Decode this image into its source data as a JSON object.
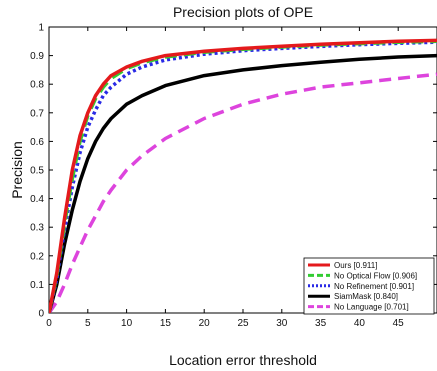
{
  "chart_data": {
    "type": "line",
    "title": "Precision plots of OPE",
    "xlabel": "Location error threshold",
    "ylabel": "Precision",
    "xlim": [
      0,
      50
    ],
    "ylim": [
      0,
      1
    ],
    "xticks": [
      0,
      5,
      10,
      15,
      20,
      25,
      30,
      35,
      40,
      45
    ],
    "yticks": [
      0,
      0.1,
      0.2,
      0.3,
      0.4,
      0.5,
      0.6,
      0.7,
      0.8,
      0.9,
      1
    ],
    "grid": false,
    "legend_position": "bottom-right",
    "x": [
      0,
      1,
      2,
      3,
      4,
      5,
      6,
      7,
      8,
      10,
      12,
      15,
      20,
      25,
      30,
      35,
      40,
      45,
      50
    ],
    "series": [
      {
        "name": "Ours [0.911]",
        "color": "#e41a1c",
        "style": "solid",
        "values": [
          0.0,
          0.14,
          0.33,
          0.5,
          0.62,
          0.7,
          0.76,
          0.8,
          0.83,
          0.86,
          0.88,
          0.9,
          0.915,
          0.925,
          0.933,
          0.94,
          0.945,
          0.95,
          0.953
        ]
      },
      {
        "name": "No Optical Flow [0.906]",
        "color": "#33cc33",
        "style": "dashed",
        "values": [
          0.0,
          0.13,
          0.31,
          0.47,
          0.6,
          0.69,
          0.75,
          0.79,
          0.82,
          0.855,
          0.875,
          0.895,
          0.912,
          0.922,
          0.93,
          0.937,
          0.942,
          0.947,
          0.95
        ]
      },
      {
        "name": "No Refinement [0.901]",
        "color": "#2a2ae6",
        "style": "dotted",
        "values": [
          0.0,
          0.12,
          0.29,
          0.44,
          0.56,
          0.65,
          0.71,
          0.76,
          0.79,
          0.835,
          0.86,
          0.885,
          0.905,
          0.917,
          0.925,
          0.932,
          0.938,
          0.943,
          0.947
        ]
      },
      {
        "name": "SiamMask [0.840]",
        "color": "#000000",
        "style": "solid",
        "values": [
          0.0,
          0.1,
          0.24,
          0.36,
          0.46,
          0.54,
          0.6,
          0.645,
          0.68,
          0.73,
          0.76,
          0.795,
          0.83,
          0.85,
          0.865,
          0.877,
          0.887,
          0.895,
          0.9
        ]
      },
      {
        "name": "No Language [0.701]",
        "color": "#dd44dd",
        "style": "dashed",
        "values": [
          0.0,
          0.04,
          0.1,
          0.17,
          0.23,
          0.29,
          0.34,
          0.39,
          0.43,
          0.5,
          0.55,
          0.61,
          0.68,
          0.73,
          0.765,
          0.79,
          0.805,
          0.82,
          0.835
        ]
      }
    ]
  }
}
